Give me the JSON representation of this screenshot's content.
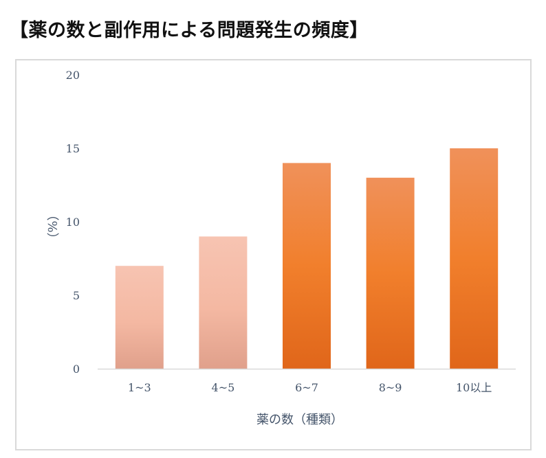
{
  "title": "【薬の数と副作用による問題発生の頻度】",
  "chart_data": {
    "type": "bar",
    "title": "【薬の数と副作用による問題発生の頻度】",
    "xlabel": "薬の数（種類）",
    "ylabel": "（%）",
    "categories": [
      "1~3",
      "4~5",
      "6~7",
      "8~9",
      "10以上"
    ],
    "values": [
      7,
      9,
      14,
      13,
      15
    ],
    "ylim": [
      0,
      20
    ],
    "yticks": [
      0,
      5,
      10,
      15,
      20
    ],
    "grid": false,
    "legend": "none",
    "bar_colors": {
      "light_top": "#f7c4b2",
      "light_bottom": "#e0a08b",
      "dark_top": "#f0915a",
      "dark_mid": "#f17f2c",
      "dark_bottom": "#e0661a"
    },
    "highlight_from_index": 2
  }
}
